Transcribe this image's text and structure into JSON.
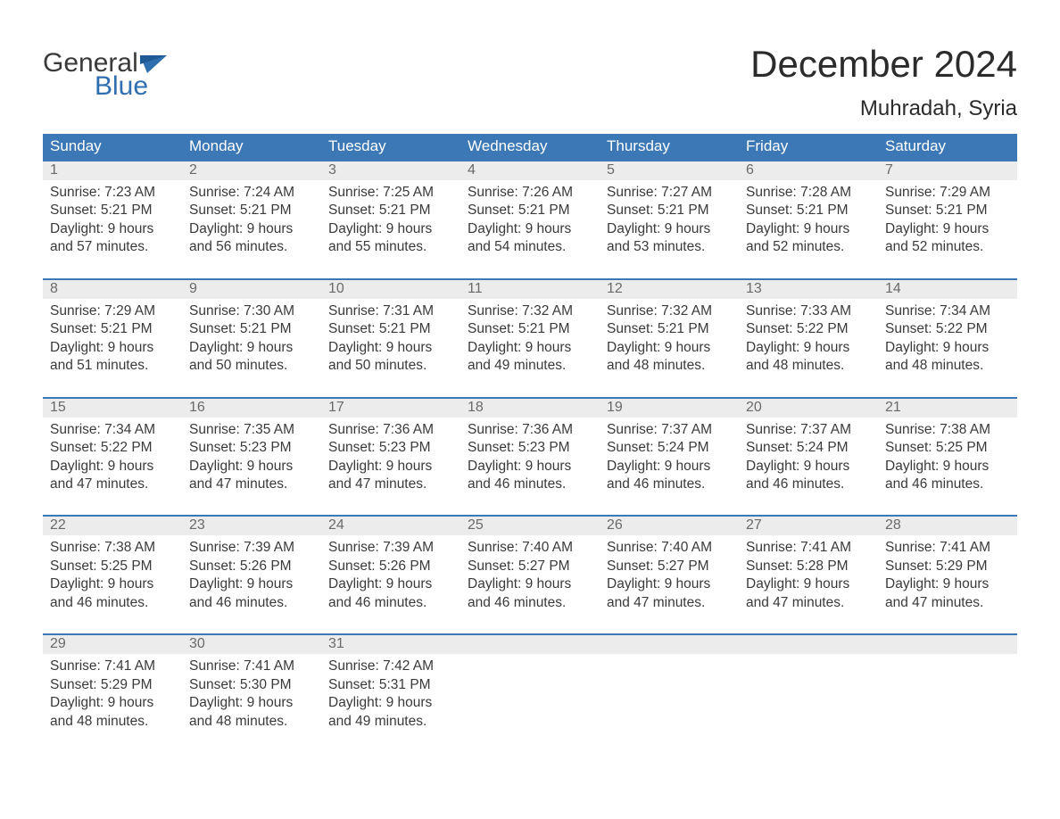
{
  "logo": {
    "text1": "General",
    "text2": "Blue"
  },
  "title": "December 2024",
  "subtitle": "Muhradah, Syria",
  "colors": {
    "header_bg": "#3b78b5",
    "header_text": "#ffffff",
    "daynum_bg": "#ececec",
    "daynum_text": "#6a6a6a",
    "body_text": "#3a3a3a",
    "week_border": "#3b78b5",
    "logo_blue": "#2f6fb0",
    "logo_dark": "#3a3a3a",
    "page_bg": "#ffffff"
  },
  "day_names": [
    "Sunday",
    "Monday",
    "Tuesday",
    "Wednesday",
    "Thursday",
    "Friday",
    "Saturday"
  ],
  "labels": {
    "sunrise": "Sunrise:",
    "sunset": "Sunset:",
    "daylight": "Daylight:"
  },
  "weeks": [
    [
      {
        "n": "1",
        "sunrise": "7:23 AM",
        "sunset": "5:21 PM",
        "dl1": "9 hours",
        "dl2": "and 57 minutes."
      },
      {
        "n": "2",
        "sunrise": "7:24 AM",
        "sunset": "5:21 PM",
        "dl1": "9 hours",
        "dl2": "and 56 minutes."
      },
      {
        "n": "3",
        "sunrise": "7:25 AM",
        "sunset": "5:21 PM",
        "dl1": "9 hours",
        "dl2": "and 55 minutes."
      },
      {
        "n": "4",
        "sunrise": "7:26 AM",
        "sunset": "5:21 PM",
        "dl1": "9 hours",
        "dl2": "and 54 minutes."
      },
      {
        "n": "5",
        "sunrise": "7:27 AM",
        "sunset": "5:21 PM",
        "dl1": "9 hours",
        "dl2": "and 53 minutes."
      },
      {
        "n": "6",
        "sunrise": "7:28 AM",
        "sunset": "5:21 PM",
        "dl1": "9 hours",
        "dl2": "and 52 minutes."
      },
      {
        "n": "7",
        "sunrise": "7:29 AM",
        "sunset": "5:21 PM",
        "dl1": "9 hours",
        "dl2": "and 52 minutes."
      }
    ],
    [
      {
        "n": "8",
        "sunrise": "7:29 AM",
        "sunset": "5:21 PM",
        "dl1": "9 hours",
        "dl2": "and 51 minutes."
      },
      {
        "n": "9",
        "sunrise": "7:30 AM",
        "sunset": "5:21 PM",
        "dl1": "9 hours",
        "dl2": "and 50 minutes."
      },
      {
        "n": "10",
        "sunrise": "7:31 AM",
        "sunset": "5:21 PM",
        "dl1": "9 hours",
        "dl2": "and 50 minutes."
      },
      {
        "n": "11",
        "sunrise": "7:32 AM",
        "sunset": "5:21 PM",
        "dl1": "9 hours",
        "dl2": "and 49 minutes."
      },
      {
        "n": "12",
        "sunrise": "7:32 AM",
        "sunset": "5:21 PM",
        "dl1": "9 hours",
        "dl2": "and 48 minutes."
      },
      {
        "n": "13",
        "sunrise": "7:33 AM",
        "sunset": "5:22 PM",
        "dl1": "9 hours",
        "dl2": "and 48 minutes."
      },
      {
        "n": "14",
        "sunrise": "7:34 AM",
        "sunset": "5:22 PM",
        "dl1": "9 hours",
        "dl2": "and 48 minutes."
      }
    ],
    [
      {
        "n": "15",
        "sunrise": "7:34 AM",
        "sunset": "5:22 PM",
        "dl1": "9 hours",
        "dl2": "and 47 minutes."
      },
      {
        "n": "16",
        "sunrise": "7:35 AM",
        "sunset": "5:23 PM",
        "dl1": "9 hours",
        "dl2": "and 47 minutes."
      },
      {
        "n": "17",
        "sunrise": "7:36 AM",
        "sunset": "5:23 PM",
        "dl1": "9 hours",
        "dl2": "and 47 minutes."
      },
      {
        "n": "18",
        "sunrise": "7:36 AM",
        "sunset": "5:23 PM",
        "dl1": "9 hours",
        "dl2": "and 46 minutes."
      },
      {
        "n": "19",
        "sunrise": "7:37 AM",
        "sunset": "5:24 PM",
        "dl1": "9 hours",
        "dl2": "and 46 minutes."
      },
      {
        "n": "20",
        "sunrise": "7:37 AM",
        "sunset": "5:24 PM",
        "dl1": "9 hours",
        "dl2": "and 46 minutes."
      },
      {
        "n": "21",
        "sunrise": "7:38 AM",
        "sunset": "5:25 PM",
        "dl1": "9 hours",
        "dl2": "and 46 minutes."
      }
    ],
    [
      {
        "n": "22",
        "sunrise": "7:38 AM",
        "sunset": "5:25 PM",
        "dl1": "9 hours",
        "dl2": "and 46 minutes."
      },
      {
        "n": "23",
        "sunrise": "7:39 AM",
        "sunset": "5:26 PM",
        "dl1": "9 hours",
        "dl2": "and 46 minutes."
      },
      {
        "n": "24",
        "sunrise": "7:39 AM",
        "sunset": "5:26 PM",
        "dl1": "9 hours",
        "dl2": "and 46 minutes."
      },
      {
        "n": "25",
        "sunrise": "7:40 AM",
        "sunset": "5:27 PM",
        "dl1": "9 hours",
        "dl2": "and 46 minutes."
      },
      {
        "n": "26",
        "sunrise": "7:40 AM",
        "sunset": "5:27 PM",
        "dl1": "9 hours",
        "dl2": "and 47 minutes."
      },
      {
        "n": "27",
        "sunrise": "7:41 AM",
        "sunset": "5:28 PM",
        "dl1": "9 hours",
        "dl2": "and 47 minutes."
      },
      {
        "n": "28",
        "sunrise": "7:41 AM",
        "sunset": "5:29 PM",
        "dl1": "9 hours",
        "dl2": "and 47 minutes."
      }
    ],
    [
      {
        "n": "29",
        "sunrise": "7:41 AM",
        "sunset": "5:29 PM",
        "dl1": "9 hours",
        "dl2": "and 48 minutes."
      },
      {
        "n": "30",
        "sunrise": "7:41 AM",
        "sunset": "5:30 PM",
        "dl1": "9 hours",
        "dl2": "and 48 minutes."
      },
      {
        "n": "31",
        "sunrise": "7:42 AM",
        "sunset": "5:31 PM",
        "dl1": "9 hours",
        "dl2": "and 49 minutes."
      },
      null,
      null,
      null,
      null
    ]
  ]
}
